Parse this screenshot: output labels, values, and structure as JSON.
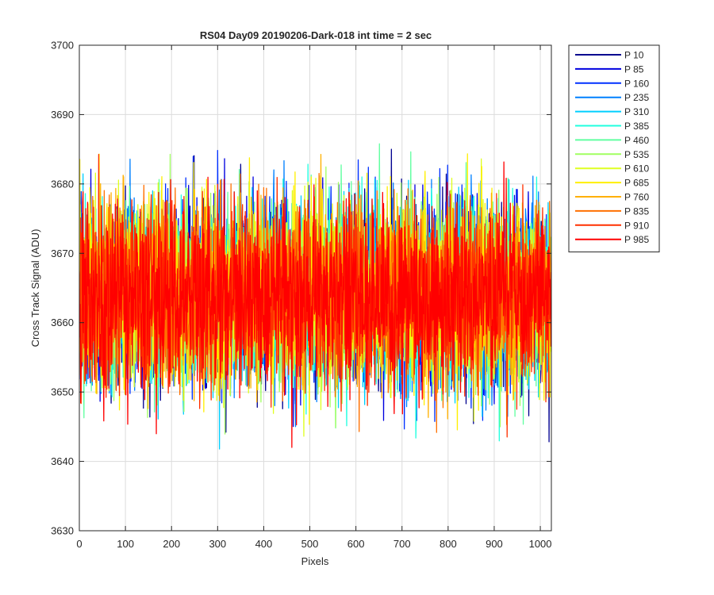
{
  "chart_data": {
    "type": "line",
    "title": "RS04 Day09 20190206-Dark-018 int time = 2 sec",
    "xlabel": "Pixels",
    "ylabel": "Cross Track Signal (ADU)",
    "xlim": [
      0,
      1024
    ],
    "ylim": [
      3630,
      3700
    ],
    "xticks": [
      0,
      100,
      200,
      300,
      400,
      500,
      600,
      700,
      800,
      900,
      1000
    ],
    "yticks": [
      3630,
      3640,
      3650,
      3660,
      3670,
      3680,
      3690,
      3700
    ],
    "grid": true,
    "legend_position": "outside-top-right",
    "series_summary": {
      "num_points": 1024,
      "mean": 3664,
      "typical_range": [
        3647,
        3681
      ],
      "extremes": {
        "max": 3692,
        "min": 3633
      }
    },
    "series": [
      {
        "name": "P 10",
        "color": "#00008f"
      },
      {
        "name": "P 85",
        "color": "#0000df"
      },
      {
        "name": "P 160",
        "color": "#0030ff"
      },
      {
        "name": "P 235",
        "color": "#0080ff"
      },
      {
        "name": "P 310",
        "color": "#00cfff"
      },
      {
        "name": "P 385",
        "color": "#20ffdf"
      },
      {
        "name": "P 460",
        "color": "#60ffa0"
      },
      {
        "name": "P 535",
        "color": "#a0ff60"
      },
      {
        "name": "P 610",
        "color": "#dfff20"
      },
      {
        "name": "P 685",
        "color": "#ffef00"
      },
      {
        "name": "P 760",
        "color": "#ffb000"
      },
      {
        "name": "P 835",
        "color": "#ff7000"
      },
      {
        "name": "P 910",
        "color": "#ff3000"
      },
      {
        "name": "P 985",
        "color": "#ff0000"
      }
    ]
  }
}
